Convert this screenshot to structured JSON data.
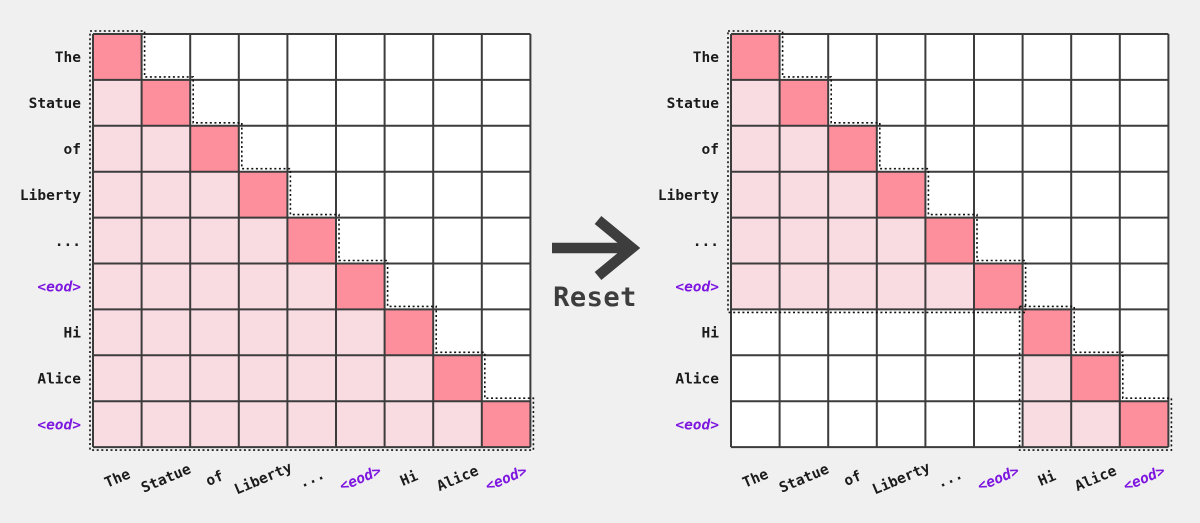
{
  "transition": {
    "label": "Reset"
  },
  "colors": {
    "background": "#f1f0f0",
    "cell_empty": "#ffffff",
    "cell_past": "#f9dce2",
    "cell_diagonal": "#fc8f9b",
    "grid_line": "#3c3c3c",
    "dotted_outline": "#111111",
    "label_text": "#1b1b1b",
    "special_token": "#7d17e0",
    "arrow": "#3d3d3d"
  },
  "matrices": [
    {
      "id": "left",
      "name": "causal-attention-mask",
      "tokens": [
        {
          "text": "The",
          "special": false
        },
        {
          "text": "Statue",
          "special": false
        },
        {
          "text": "of",
          "special": false
        },
        {
          "text": "Liberty",
          "special": false
        },
        {
          "text": "...",
          "special": false
        },
        {
          "text": "<eod>",
          "special": true
        },
        {
          "text": "Hi",
          "special": false
        },
        {
          "text": "Alice",
          "special": false
        },
        {
          "text": "<eod>",
          "special": true
        }
      ],
      "blocks": [
        {
          "start": 0,
          "end": 8
        }
      ]
    },
    {
      "id": "right",
      "name": "document-reset-attention-mask",
      "tokens": [
        {
          "text": "The",
          "special": false
        },
        {
          "text": "Statue",
          "special": false
        },
        {
          "text": "of",
          "special": false
        },
        {
          "text": "Liberty",
          "special": false
        },
        {
          "text": "...",
          "special": false
        },
        {
          "text": "<eod>",
          "special": true
        },
        {
          "text": "Hi",
          "special": false
        },
        {
          "text": "Alice",
          "special": false
        },
        {
          "text": "<eod>",
          "special": true
        }
      ],
      "blocks": [
        {
          "start": 0,
          "end": 5
        },
        {
          "start": 6,
          "end": 8
        }
      ]
    }
  ]
}
